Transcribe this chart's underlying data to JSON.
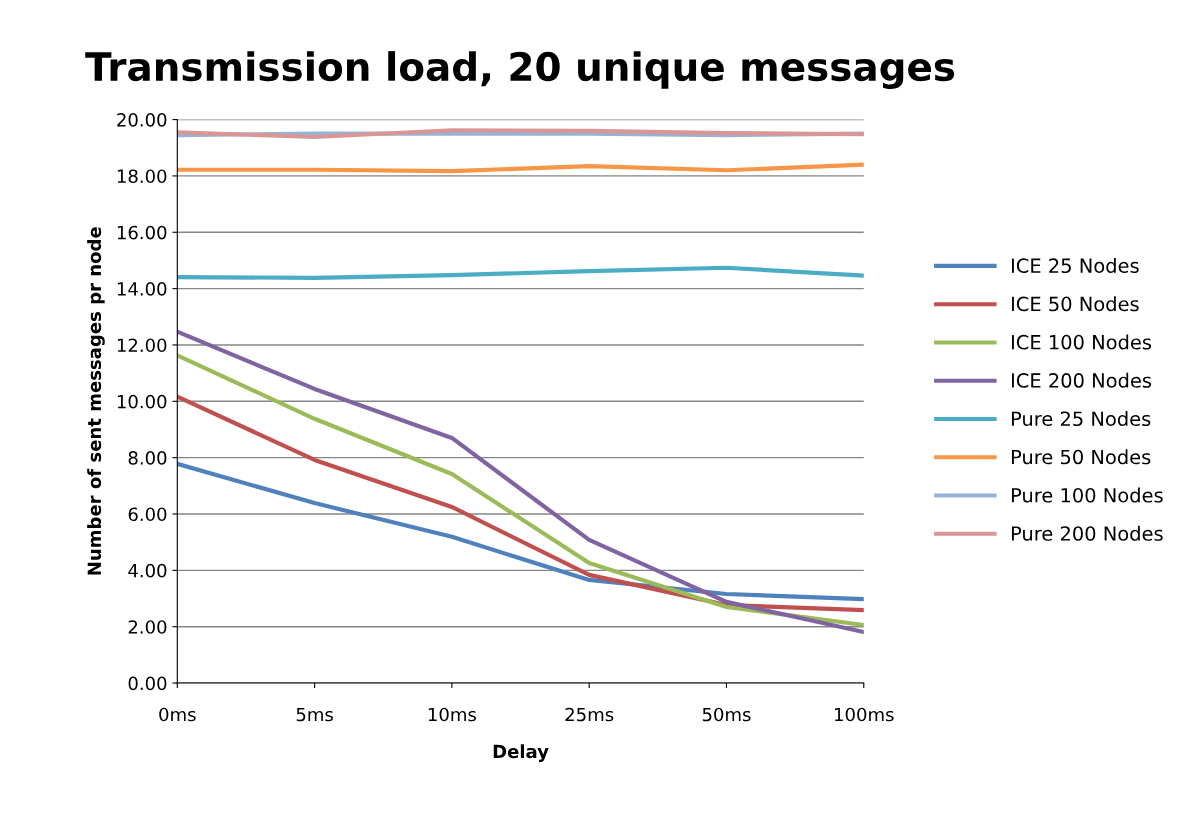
{
  "chart_data": {
    "type": "line",
    "title": "Transmission load, 20 unique messages",
    "xlabel": "Delay",
    "ylabel": "Number of sent messages pr node",
    "categories": [
      "0ms",
      "5ms",
      "10ms",
      "25ms",
      "50ms",
      "100ms"
    ],
    "series": [
      {
        "name": "ICE 25 Nodes",
        "color": "#4f81bd",
        "values": [
          7.78,
          6.39,
          5.19,
          3.66,
          3.16,
          2.98
        ]
      },
      {
        "name": "ICE 50 Nodes",
        "color": "#c0504d",
        "values": [
          10.17,
          7.92,
          6.25,
          3.84,
          2.77,
          2.59
        ]
      },
      {
        "name": "ICE 100 Nodes",
        "color": "#9bbb59",
        "values": [
          11.63,
          9.38,
          7.42,
          4.26,
          2.7,
          2.06
        ]
      },
      {
        "name": "ICE 200 Nodes",
        "color": "#8064a2",
        "values": [
          12.47,
          10.44,
          8.7,
          5.08,
          2.88,
          1.81
        ]
      },
      {
        "name": "Pure 25 Nodes",
        "color": "#4bacc6",
        "values": [
          14.41,
          14.38,
          14.48,
          14.62,
          14.74,
          14.46
        ]
      },
      {
        "name": "Pure 50 Nodes",
        "color": "#f79646",
        "values": [
          18.22,
          18.22,
          18.17,
          18.35,
          18.2,
          18.4
        ]
      },
      {
        "name": "Pure 100 Nodes",
        "color": "#95b3d7",
        "values": [
          19.45,
          19.5,
          19.5,
          19.5,
          19.45,
          19.5
        ]
      },
      {
        "name": "Pure 200 Nodes",
        "color": "#d99694",
        "values": [
          19.55,
          19.38,
          19.62,
          19.6,
          19.52,
          19.48
        ]
      }
    ],
    "ylim": [
      0,
      20
    ],
    "yticks": [
      {
        "value": 0,
        "label": "0.00"
      },
      {
        "value": 2,
        "label": "2.00"
      },
      {
        "value": 4,
        "label": "4.00"
      },
      {
        "value": 6,
        "label": "6.00"
      },
      {
        "value": 8,
        "label": "8.00"
      },
      {
        "value": 10,
        "label": "10.00"
      },
      {
        "value": 12,
        "label": "12.00"
      },
      {
        "value": 14,
        "label": "14.00"
      },
      {
        "value": 16,
        "label": "16.00"
      },
      {
        "value": 18,
        "label": "18.00"
      },
      {
        "value": 20,
        "label": "20.00"
      }
    ],
    "grid": "y",
    "legend": "right",
    "marker": "none",
    "line_style": "solid"
  }
}
